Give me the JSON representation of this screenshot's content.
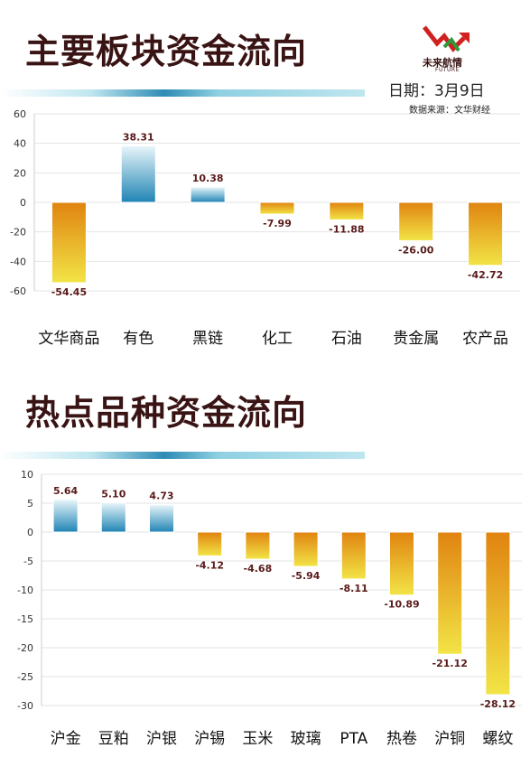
{
  "header": {
    "logo_cn": "未来航情",
    "logo_en": "FUTURE",
    "date": "日期：3月9日",
    "source": "数据来源：文华财经"
  },
  "colors": {
    "title": "#3a1414",
    "positive_top": "#e9f6fa",
    "positive_bottom": "#1f84b4",
    "negative_top": "#e08410",
    "negative_bottom": "#f2e446",
    "label": "#5a1a1a",
    "band_light": "#9fd8e6",
    "band_dark": "#2e8cb5"
  },
  "sections": [
    {
      "title": "主要板块资金流向"
    },
    {
      "title": "热点品种资金流向"
    }
  ],
  "chart_data": [
    {
      "type": "bar",
      "title": "主要板块资金流向",
      "categories": [
        "文华商品",
        "有色",
        "黑链",
        "化工",
        "石油",
        "贵金属",
        "农产品"
      ],
      "values": [
        -54.45,
        38.31,
        10.38,
        -7.99,
        -11.88,
        -26.0,
        -42.72
      ],
      "value_labels": [
        "-54.45",
        "38.31",
        "10.38",
        "-7.99",
        "-11.88",
        "-26.00",
        "-42.72"
      ],
      "ylim": [
        -60,
        60
      ],
      "yticks": [
        60,
        40,
        20,
        0,
        -20,
        -40,
        -60
      ],
      "grid": true,
      "legend": "none"
    },
    {
      "type": "bar",
      "title": "热点品种资金流向",
      "categories": [
        "沪金",
        "豆粕",
        "沪银",
        "沪锡",
        "玉米",
        "玻璃",
        "PTA",
        "热卷",
        "沪铜",
        "螺纹"
      ],
      "values": [
        5.64,
        5.1,
        4.73,
        -4.12,
        -4.68,
        -5.94,
        -8.11,
        -10.89,
        -21.12,
        -28.12
      ],
      "value_labels": [
        "5.64",
        "5.10",
        "4.73",
        "-4.12",
        "-4.68",
        "-5.94",
        "-8.11",
        "-10.89",
        "-21.12",
        "-28.12"
      ],
      "ylim": [
        -30,
        10
      ],
      "yticks": [
        10,
        5,
        0,
        -5,
        -10,
        -15,
        -20,
        -25,
        -30
      ],
      "grid": true,
      "legend": "none"
    }
  ]
}
